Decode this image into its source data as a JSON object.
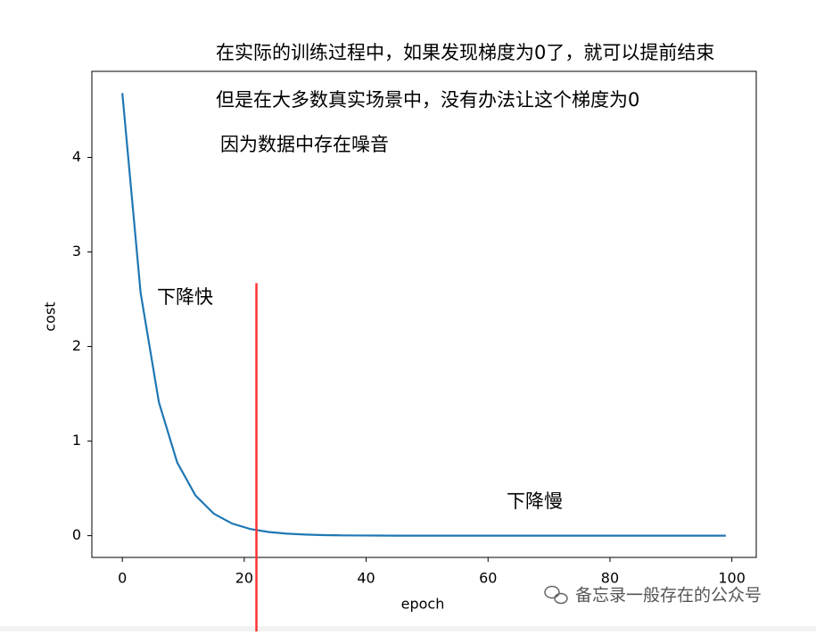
{
  "chart_data": {
    "type": "line",
    "annotations": [
      "在实际的训练过程中，如果发现梯度为0了，就可以提前结束",
      "但是在大多数真实场景中，没有办法让这个梯度为0",
      "因为数据中存在噪音"
    ],
    "region_labels": [
      "下降快",
      "下降慢"
    ],
    "xlabel": "epoch",
    "ylabel": "cost",
    "x": [
      0,
      3,
      6,
      9,
      12,
      15,
      18,
      21,
      24,
      27,
      30,
      33,
      36,
      39,
      42,
      45,
      48,
      51,
      54,
      57,
      60,
      63,
      66,
      69,
      72,
      75,
      78,
      81,
      84,
      87,
      90,
      93,
      96,
      99
    ],
    "series": [
      {
        "color": "#1f77b4",
        "values": [
          4.68,
          2.568,
          1.41,
          0.774,
          0.425,
          0.233,
          0.128,
          0.07,
          0.039,
          0.021,
          0.012,
          0.006,
          0.003,
          0.0016,
          0.0009,
          0,
          0,
          0,
          0,
          0,
          0,
          0,
          0,
          0,
          0,
          0,
          0,
          0,
          0,
          0,
          0,
          0,
          0,
          0
        ]
      }
    ],
    "vline": {
      "x": 22,
      "ymax": 2.67,
      "color": "#ff3333"
    },
    "xlim": [
      -5,
      104
    ],
    "ylim": [
      -0.23,
      4.91
    ],
    "xticks": [
      0,
      20,
      40,
      60,
      80,
      100
    ],
    "yticks": [
      0,
      1,
      2,
      3,
      4
    ],
    "annotation_color": "#ff00ff",
    "region_label_color": "#2e7d32",
    "watermark": "备忘录一般存在的公众号"
  }
}
